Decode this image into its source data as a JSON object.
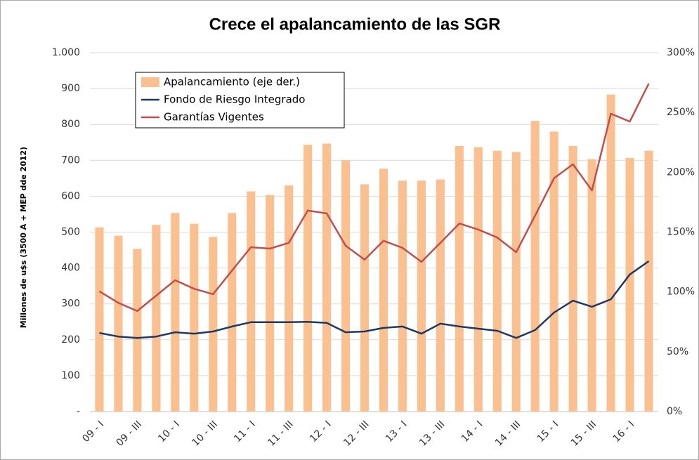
{
  "chart_data": {
    "type": "bar",
    "title": "Crece el apalancamiento de las SGR",
    "y_label": "Millones de u$s (3500 A + MEP dde 2012)",
    "categories": [
      "09 - I",
      null,
      "09 - III",
      null,
      "10 - I",
      null,
      "10 - III",
      null,
      "11 - I",
      null,
      "11 - III",
      null,
      "12 - I",
      null,
      "12 - III",
      null,
      "13 - I",
      null,
      "13 - III",
      null,
      "14 - I",
      null,
      "14 - III",
      null,
      "15 - I",
      null,
      "15 - III",
      null,
      "16 - I",
      null
    ],
    "series": [
      {
        "name": "Apalancamiento (eje der.)",
        "type": "bar",
        "axis": "y2",
        "color": "#fac090",
        "values": [
          154,
          147,
          136,
          156,
          166,
          157,
          146,
          166,
          184,
          181,
          189,
          223,
          224,
          210,
          190,
          203,
          193,
          193,
          194,
          222,
          221,
          218,
          217,
          243,
          234,
          222,
          211,
          265,
          212,
          218
        ]
      },
      {
        "name": "Fondo de Riesgo Integrado",
        "type": "line",
        "color": "#1f3864",
        "values": [
          219,
          209,
          205,
          209,
          221,
          217,
          223,
          237,
          249,
          249,
          249,
          250,
          247,
          221,
          223,
          233,
          237,
          217,
          245,
          237,
          231,
          225,
          205,
          227,
          276,
          309,
          292,
          313,
          382,
          419
        ]
      },
      {
        "name": "Garantías Vigentes",
        "type": "line",
        "color": "#c0504d",
        "values": [
          335,
          303,
          280,
          323,
          366,
          342,
          327,
          393,
          458,
          454,
          470,
          560,
          552,
          462,
          423,
          476,
          456,
          417,
          470,
          524,
          507,
          485,
          444,
          546,
          650,
          689,
          616,
          830,
          808,
          914
        ]
      }
    ],
    "ylim": [
      0,
      1000
    ],
    "yticks": [
      {
        "value": 0,
        "label": "-"
      },
      100,
      200,
      300,
      400,
      500,
      600,
      700,
      800,
      900,
      {
        "value": 1000,
        "label": "1.000"
      }
    ],
    "y2lim": [
      0,
      300
    ],
    "y2ticks": [
      {
        "value": 0,
        "label": "0%"
      },
      {
        "value": 50,
        "label": "50%"
      },
      {
        "value": 100,
        "label": "100%"
      },
      {
        "value": 150,
        "label": "150%"
      },
      {
        "value": 200,
        "label": "200%"
      },
      {
        "value": 250,
        "label": "250%"
      },
      {
        "value": 300,
        "label": "300%"
      }
    ],
    "grid": true,
    "legend": "top-left"
  }
}
